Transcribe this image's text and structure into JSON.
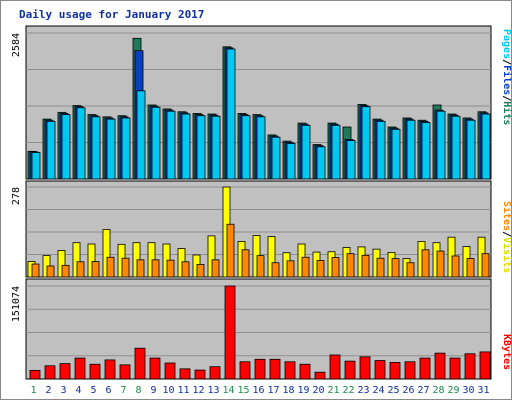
{
  "chart_data": {
    "type": "bar",
    "title": "Daily usage for January 2017",
    "categories": [
      "1",
      "2",
      "3",
      "4",
      "5",
      "6",
      "7",
      "8",
      "9",
      "10",
      "11",
      "12",
      "13",
      "14",
      "15",
      "16",
      "17",
      "18",
      "19",
      "20",
      "21",
      "22",
      "23",
      "24",
      "25",
      "26",
      "27",
      "28",
      "29",
      "30",
      "31"
    ],
    "weekend_days": [
      "1",
      "7",
      "8",
      "14",
      "15",
      "21",
      "22",
      "28",
      "29"
    ],
    "panels": [
      {
        "name": "pages-files-hits",
        "ytick": "2584",
        "ylim": [
          0,
          2584
        ],
        "series": [
          {
            "name": "Hits",
            "color": "#1e7a5a",
            "values": [
              490,
              1060,
              1180,
              1300,
              1140,
              1100,
              1120,
              2490,
              1310,
              1240,
              1190,
              1160,
              1150,
              2340,
              1160,
              1140,
              780,
              670,
              990,
              610,
              990,
              920,
              1320,
              1060,
              920,
              1080,
              1040,
              1310,
              1150,
              1080,
              1190
            ]
          },
          {
            "name": "Files",
            "color": "#0a40c0",
            "values": [
              480,
              1040,
              1160,
              1280,
              1120,
              1080,
              1100,
              2270,
              1290,
              1220,
              1170,
              1140,
              1130,
              2320,
              1140,
              1120,
              760,
              650,
              970,
              590,
              970,
              700,
              1300,
              1040,
              900,
              1060,
              1020,
              1220,
              1130,
              1060,
              1170
            ]
          },
          {
            "name": "Pages",
            "color": "#00c8f0",
            "values": [
              470,
              1020,
              1140,
              1260,
              1100,
              1060,
              1080,
              1560,
              1270,
              1200,
              1150,
              1120,
              1110,
              2300,
              1120,
              1100,
              740,
              630,
              950,
              570,
              950,
              680,
              1280,
              1020,
              880,
              1040,
              1000,
              1200,
              1110,
              1040,
              1150
            ]
          }
        ]
      },
      {
        "name": "sites-visits",
        "ytick": "278",
        "ylim": [
          0,
          278
        ],
        "series": [
          {
            "name": "Visits",
            "color": "#ffff00",
            "values": [
              48,
              66,
              82,
              106,
              102,
              147,
              101,
              106,
              106,
              102,
              88,
              68,
              127,
              278,
              110,
              128,
              125,
              75,
              102,
              77,
              78,
              91,
              93,
              86,
              76,
              57,
              110,
              106,
              123,
              94,
              123
            ]
          },
          {
            "name": "Sites",
            "color": "#ff8800",
            "values": [
              40,
              34,
              36,
              47,
              48,
              61,
              58,
              53,
              53,
              52,
              47,
              39,
              53,
              163,
              84,
              66,
              44,
              50,
              61,
              51,
              60,
              72,
              67,
              58,
              57,
              44,
              84,
              80,
              65,
              57,
              72
            ]
          }
        ]
      },
      {
        "name": "kbytes",
        "ytick": "151074",
        "ylim": [
          0,
          151074
        ],
        "series": [
          {
            "name": "KBytes",
            "color": "#ff0000",
            "values": [
              14000,
              21500,
              25000,
              34000,
              24000,
              31000,
              23000,
              50000,
              34000,
              26000,
              16500,
              14500,
              20000,
              151074,
              28000,
              32000,
              32000,
              28000,
              24000,
              11000,
              39000,
              29000,
              36000,
              30000,
              27000,
              28000,
              34000,
              42000,
              34000,
              41000,
              44000
            ]
          }
        ]
      }
    ],
    "legend_text": {
      "top": [
        "Pages",
        "/",
        "Files",
        "/",
        "Hits"
      ],
      "middle": [
        "Sites",
        "/",
        "Visits"
      ],
      "bottom": [
        "KBytes"
      ]
    },
    "colors": {
      "background": "#c0c0c0",
      "title": "#1030a0",
      "weekend_label": "#1e8a4a",
      "weekday_label": "#1030a0",
      "legend_pages": "#00c8f0",
      "legend_files": "#0a40c0",
      "legend_hits": "#1e7a5a",
      "legend_sites": "#ff8800",
      "legend_visits": "#dddd00",
      "legend_kbytes": "#ff0000"
    }
  }
}
